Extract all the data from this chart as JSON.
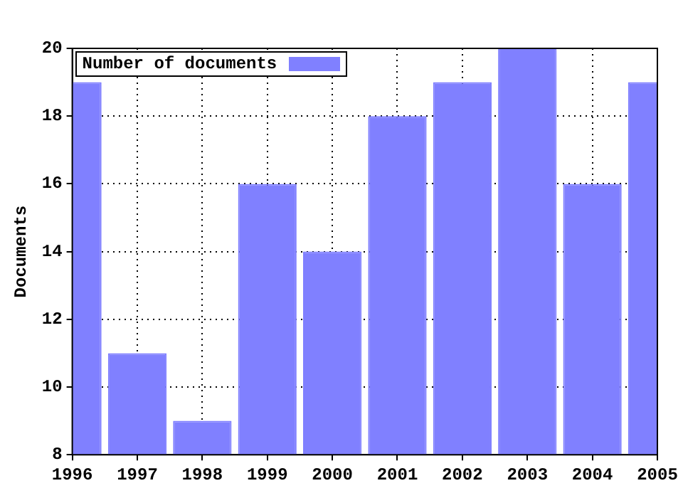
{
  "chart_data": {
    "type": "bar",
    "ylabel": "Documents",
    "x": [
      1996,
      1997,
      1998,
      1999,
      2000,
      2001,
      2002,
      2003,
      2004,
      2005
    ],
    "series": [
      {
        "name": "Number of documents",
        "color": "#8080ff",
        "values": [
          19,
          11,
          9,
          16,
          14,
          18,
          19,
          20,
          16,
          19
        ]
      }
    ],
    "xlim": [
      1996,
      2005
    ],
    "xticks": [
      1996,
      1997,
      1998,
      1999,
      2000,
      2001,
      2002,
      2003,
      2004,
      2005
    ],
    "ylim": [
      8,
      20
    ],
    "yticks": [
      8,
      10,
      12,
      14,
      16,
      18,
      20
    ],
    "grid": true,
    "legend": "top left"
  }
}
